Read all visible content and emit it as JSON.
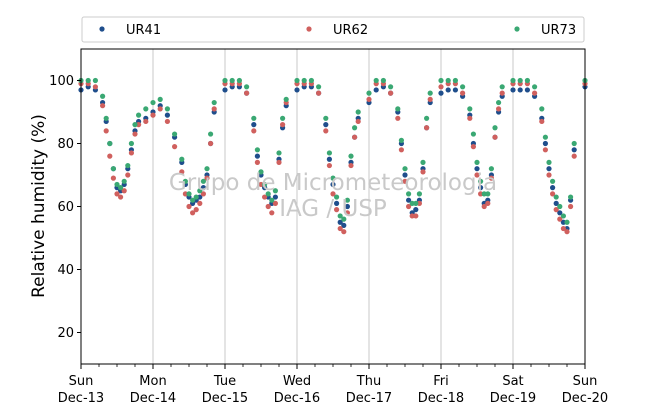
{
  "chart_data": {
    "type": "scatter",
    "title": "",
    "ylabel": "Relative humidity (%)",
    "xlabel": "",
    "ylim": [
      10,
      110
    ],
    "yticks": [
      20,
      40,
      60,
      80,
      100
    ],
    "xlim": [
      0,
      7
    ],
    "xticks": [
      {
        "x": 0,
        "day": "Sun",
        "date": "Dec-13"
      },
      {
        "x": 1,
        "day": "Mon",
        "date": "Dec-14"
      },
      {
        "x": 2,
        "day": "Tue",
        "date": "Dec-15"
      },
      {
        "x": 3,
        "day": "Wed",
        "date": "Dec-16"
      },
      {
        "x": 4,
        "day": "Thu",
        "date": "Dec-17"
      },
      {
        "x": 5,
        "day": "Fri",
        "date": "Dec-18"
      },
      {
        "x": 6,
        "day": "Sat",
        "date": "Dec-19"
      },
      {
        "x": 7,
        "day": "Sun",
        "date": "Dec-20"
      }
    ],
    "grid": "vertical",
    "legend": {
      "placement": "top",
      "columns": 3
    },
    "watermark": [
      "Grupo de Micrometeorologia",
      "IAG / USP"
    ],
    "series": [
      {
        "name": "UR41",
        "color": "#1f4e8c",
        "x": [
          0,
          0.1,
          0.2,
          0.3,
          0.35,
          0.4,
          0.45,
          0.5,
          0.55,
          0.6,
          0.65,
          0.7,
          0.75,
          0.8,
          0.9,
          1,
          1.1,
          1.2,
          1.3,
          1.4,
          1.45,
          1.5,
          1.55,
          1.6,
          1.65,
          1.7,
          1.75,
          1.8,
          1.85,
          2,
          2.1,
          2.2,
          2.3,
          2.4,
          2.45,
          2.5,
          2.55,
          2.6,
          2.65,
          2.7,
          2.75,
          2.8,
          2.85,
          3,
          3.1,
          3.2,
          3.3,
          3.4,
          3.45,
          3.5,
          3.55,
          3.6,
          3.65,
          3.7,
          3.75,
          3.8,
          3.85,
          4,
          4.1,
          4.2,
          4.3,
          4.4,
          4.45,
          4.5,
          4.55,
          4.6,
          4.65,
          4.7,
          4.75,
          4.8,
          4.85,
          5,
          5.1,
          5.2,
          5.3,
          5.4,
          5.45,
          5.5,
          5.55,
          5.6,
          5.65,
          5.7,
          5.75,
          5.8,
          5.85,
          6,
          6.1,
          6.2,
          6.3,
          6.4,
          6.45,
          6.5,
          6.55,
          6.6,
          6.65,
          6.7,
          6.75,
          6.8,
          6.85,
          7
        ],
        "y": [
          97,
          98,
          97,
          93,
          87,
          80,
          72,
          66,
          65,
          67,
          72,
          78,
          84,
          87,
          88,
          90,
          92,
          89,
          82,
          74,
          67,
          63,
          61,
          62,
          63,
          66,
          70,
          80,
          90,
          97,
          98,
          98,
          96,
          86,
          76,
          70,
          66,
          63,
          61,
          63,
          75,
          85,
          92,
          97,
          98,
          98,
          96,
          86,
          75,
          67,
          61,
          55,
          54,
          60,
          74,
          82,
          88,
          93,
          97,
          98,
          96,
          90,
          80,
          70,
          62,
          58,
          59,
          62,
          72,
          85,
          93,
          96,
          97,
          97,
          95,
          89,
          80,
          72,
          66,
          61,
          62,
          70,
          82,
          90,
          95,
          97,
          97,
          97,
          95,
          88,
          80,
          72,
          66,
          61,
          58,
          55,
          53,
          62,
          78,
          98
        ]
      },
      {
        "name": "UR62",
        "color": "#d0605e",
        "x": [
          0,
          0.1,
          0.2,
          0.3,
          0.35,
          0.4,
          0.45,
          0.5,
          0.55,
          0.6,
          0.65,
          0.7,
          0.75,
          0.8,
          0.9,
          1,
          1.1,
          1.2,
          1.3,
          1.4,
          1.45,
          1.5,
          1.55,
          1.6,
          1.65,
          1.7,
          1.75,
          1.8,
          1.85,
          2,
          2.1,
          2.2,
          2.3,
          2.4,
          2.45,
          2.5,
          2.55,
          2.6,
          2.65,
          2.7,
          2.75,
          2.8,
          2.85,
          3,
          3.1,
          3.2,
          3.3,
          3.4,
          3.45,
          3.5,
          3.55,
          3.6,
          3.65,
          3.7,
          3.75,
          3.8,
          3.85,
          4,
          4.1,
          4.2,
          4.3,
          4.4,
          4.45,
          4.5,
          4.55,
          4.6,
          4.65,
          4.7,
          4.75,
          4.8,
          4.85,
          5,
          5.1,
          5.2,
          5.3,
          5.4,
          5.45,
          5.5,
          5.55,
          5.6,
          5.65,
          5.7,
          5.75,
          5.8,
          5.85,
          6,
          6.1,
          6.2,
          6.3,
          6.4,
          6.45,
          6.5,
          6.55,
          6.6,
          6.65,
          6.7,
          6.75,
          6.8,
          6.85,
          7
        ],
        "y": [
          99,
          99,
          98,
          92,
          84,
          76,
          69,
          64,
          63,
          65,
          70,
          77,
          83,
          86,
          87,
          89,
          91,
          87,
          79,
          71,
          64,
          60,
          58,
          59,
          61,
          64,
          69,
          80,
          91,
          99,
          99,
          99,
          96,
          84,
          74,
          67,
          63,
          60,
          58,
          61,
          74,
          86,
          93,
          99,
          99,
          99,
          96,
          84,
          73,
          64,
          59,
          53,
          52,
          58,
          73,
          82,
          87,
          94,
          99,
          99,
          96,
          88,
          78,
          68,
          60,
          57,
          57,
          61,
          71,
          85,
          94,
          98,
          99,
          99,
          96,
          88,
          79,
          70,
          64,
          60,
          61,
          69,
          82,
          91,
          96,
          99,
          99,
          99,
          96,
          87,
          78,
          70,
          64,
          59,
          56,
          53,
          52,
          60,
          76,
          99
        ]
      },
      {
        "name": "UR73",
        "color": "#3aa873",
        "x": [
          0,
          0.1,
          0.2,
          0.3,
          0.35,
          0.4,
          0.45,
          0.5,
          0.55,
          0.6,
          0.65,
          0.7,
          0.75,
          0.8,
          0.9,
          1,
          1.1,
          1.2,
          1.3,
          1.4,
          1.45,
          1.5,
          1.55,
          1.6,
          1.65,
          1.7,
          1.75,
          1.8,
          1.85,
          2,
          2.1,
          2.2,
          2.3,
          2.4,
          2.45,
          2.5,
          2.55,
          2.6,
          2.65,
          2.7,
          2.75,
          2.8,
          2.85,
          3,
          3.1,
          3.2,
          3.3,
          3.4,
          3.45,
          3.5,
          3.55,
          3.6,
          3.65,
          3.7,
          3.75,
          3.8,
          3.85,
          4,
          4.1,
          4.2,
          4.3,
          4.4,
          4.45,
          4.5,
          4.55,
          4.6,
          4.65,
          4.7,
          4.75,
          4.8,
          4.85,
          5,
          5.1,
          5.2,
          5.3,
          5.4,
          5.45,
          5.5,
          5.55,
          5.6,
          5.65,
          5.7,
          5.75,
          5.8,
          5.85,
          6,
          6.1,
          6.2,
          6.3,
          6.4,
          6.45,
          6.5,
          6.55,
          6.6,
          6.65,
          6.7,
          6.75,
          6.8,
          6.85,
          7
        ],
        "y": [
          100,
          100,
          100,
          95,
          88,
          80,
          72,
          67,
          66,
          68,
          73,
          80,
          86,
          89,
          91,
          93,
          94,
          91,
          83,
          75,
          68,
          64,
          62,
          63,
          65,
          68,
          72,
          83,
          93,
          100,
          100,
          100,
          98,
          88,
          78,
          71,
          67,
          64,
          62,
          65,
          77,
          88,
          94,
          100,
          100,
          100,
          98,
          88,
          77,
          69,
          63,
          57,
          56,
          62,
          76,
          85,
          90,
          96,
          100,
          100,
          98,
          91,
          81,
          72,
          64,
          61,
          61,
          64,
          74,
          88,
          96,
          100,
          100,
          100,
          98,
          91,
          83,
          74,
          68,
          64,
          64,
          72,
          85,
          93,
          98,
          100,
          100,
          100,
          98,
          91,
          82,
          74,
          68,
          63,
          60,
          57,
          55,
          63,
          80,
          100
        ]
      }
    ]
  }
}
